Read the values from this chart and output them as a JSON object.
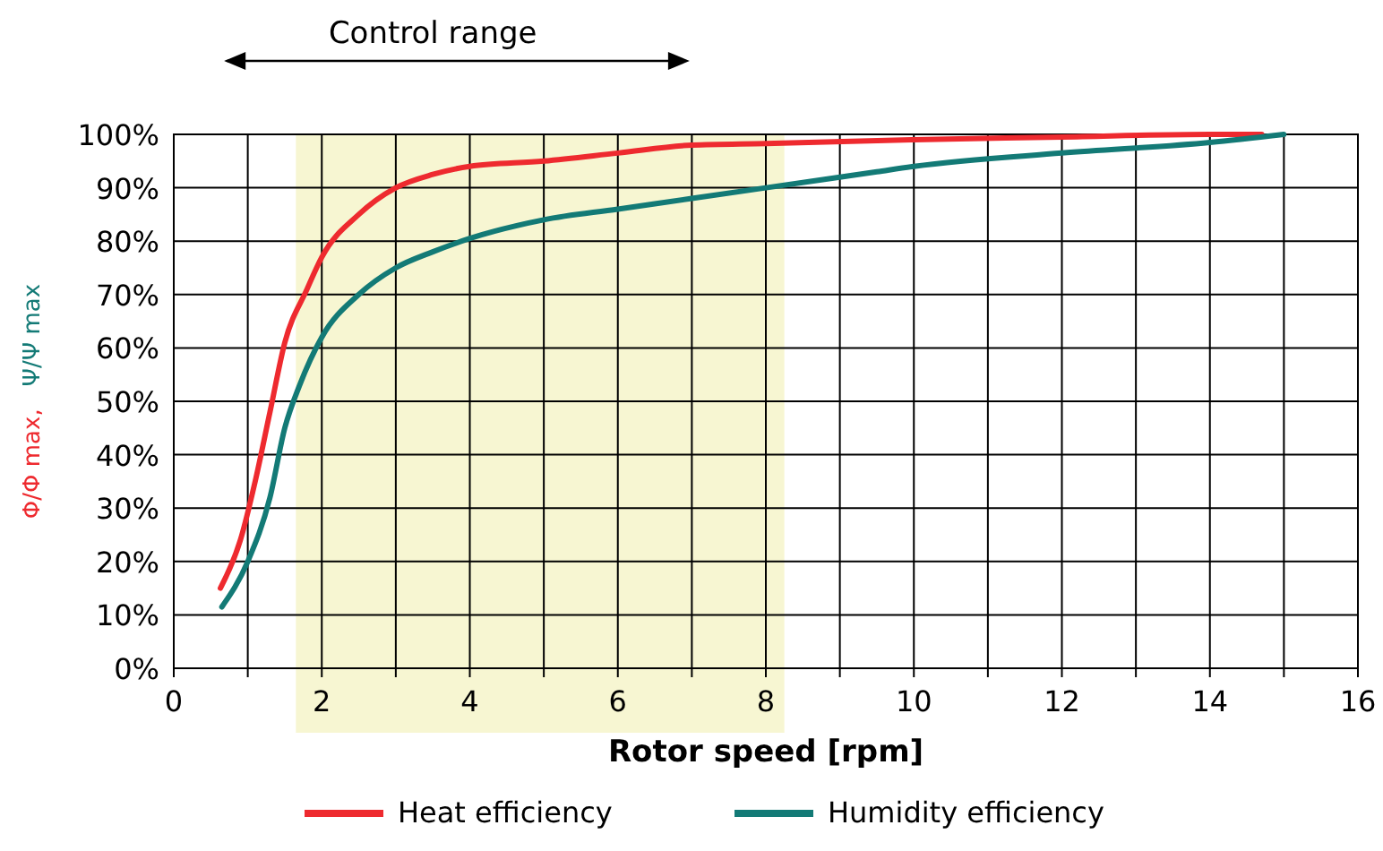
{
  "chart_data": {
    "type": "line",
    "xlabel": "Rotor speed [rpm]",
    "ylabel": "Φ/Φ max, Ψ/Ψ max",
    "annotations": [
      "Control range"
    ],
    "xlim": [
      0,
      16
    ],
    "ylim": [
      0,
      100
    ],
    "xticks": [
      0,
      {
        "value": 1,
        "label": null
      },
      2,
      {
        "value": 3,
        "label": null
      },
      4,
      {
        "value": 5,
        "label": null
      },
      6,
      {
        "value": 7,
        "label": null
      },
      8,
      {
        "value": 9,
        "label": null
      },
      10,
      {
        "value": 11,
        "label": null
      },
      12,
      {
        "value": 13,
        "label": null
      },
      14,
      {
        "value": 15,
        "label": null
      },
      16
    ],
    "yticks": [
      {
        "value": 0,
        "label": "0%"
      },
      {
        "value": 10,
        "label": "10%"
      },
      {
        "value": 20,
        "label": "20%"
      },
      {
        "value": 30,
        "label": "30%"
      },
      {
        "value": 40,
        "label": "40%"
      },
      {
        "value": 50,
        "label": "50%"
      },
      {
        "value": 60,
        "label": "60%"
      },
      {
        "value": 70,
        "label": "70%"
      },
      {
        "value": 80,
        "label": "80%"
      },
      {
        "value": 90,
        "label": "90%"
      },
      {
        "value": 100,
        "label": "100%"
      }
    ],
    "grid": true,
    "legend": "bottom",
    "marker": "none",
    "line_style": "solid",
    "bands": [
      {
        "axis": "x",
        "from": 1.65,
        "to": 8.25,
        "color": "#f7f6d2"
      }
    ],
    "series": [
      {
        "name": "Heat efficiency",
        "color": "#ee2a2f",
        "x": [
          0.63,
          0.9,
          1.1,
          1.3,
          1.5,
          1.8,
          2,
          2.5,
          3,
          3.5,
          4,
          5,
          6,
          7,
          8,
          10,
          12,
          14,
          14.7
        ],
        "values": [
          15,
          24,
          35,
          48,
          61,
          71,
          77,
          85,
          90,
          92.5,
          94,
          95,
          96.5,
          98,
          98.3,
          99,
          99.5,
          100,
          100
        ]
      },
      {
        "name": "Humidity efficiency",
        "color": "#137a76",
        "x": [
          0.65,
          1,
          1.3,
          1.5,
          1.7,
          2,
          2.5,
          3,
          3.5,
          4,
          5,
          6,
          7,
          8,
          9.5,
          10,
          12,
          14,
          15
        ],
        "values": [
          11.5,
          20,
          32,
          45,
          53,
          62,
          70,
          75,
          78,
          80.5,
          84,
          86,
          88,
          90,
          93,
          94,
          96.5,
          98.5,
          100
        ]
      }
    ]
  }
}
